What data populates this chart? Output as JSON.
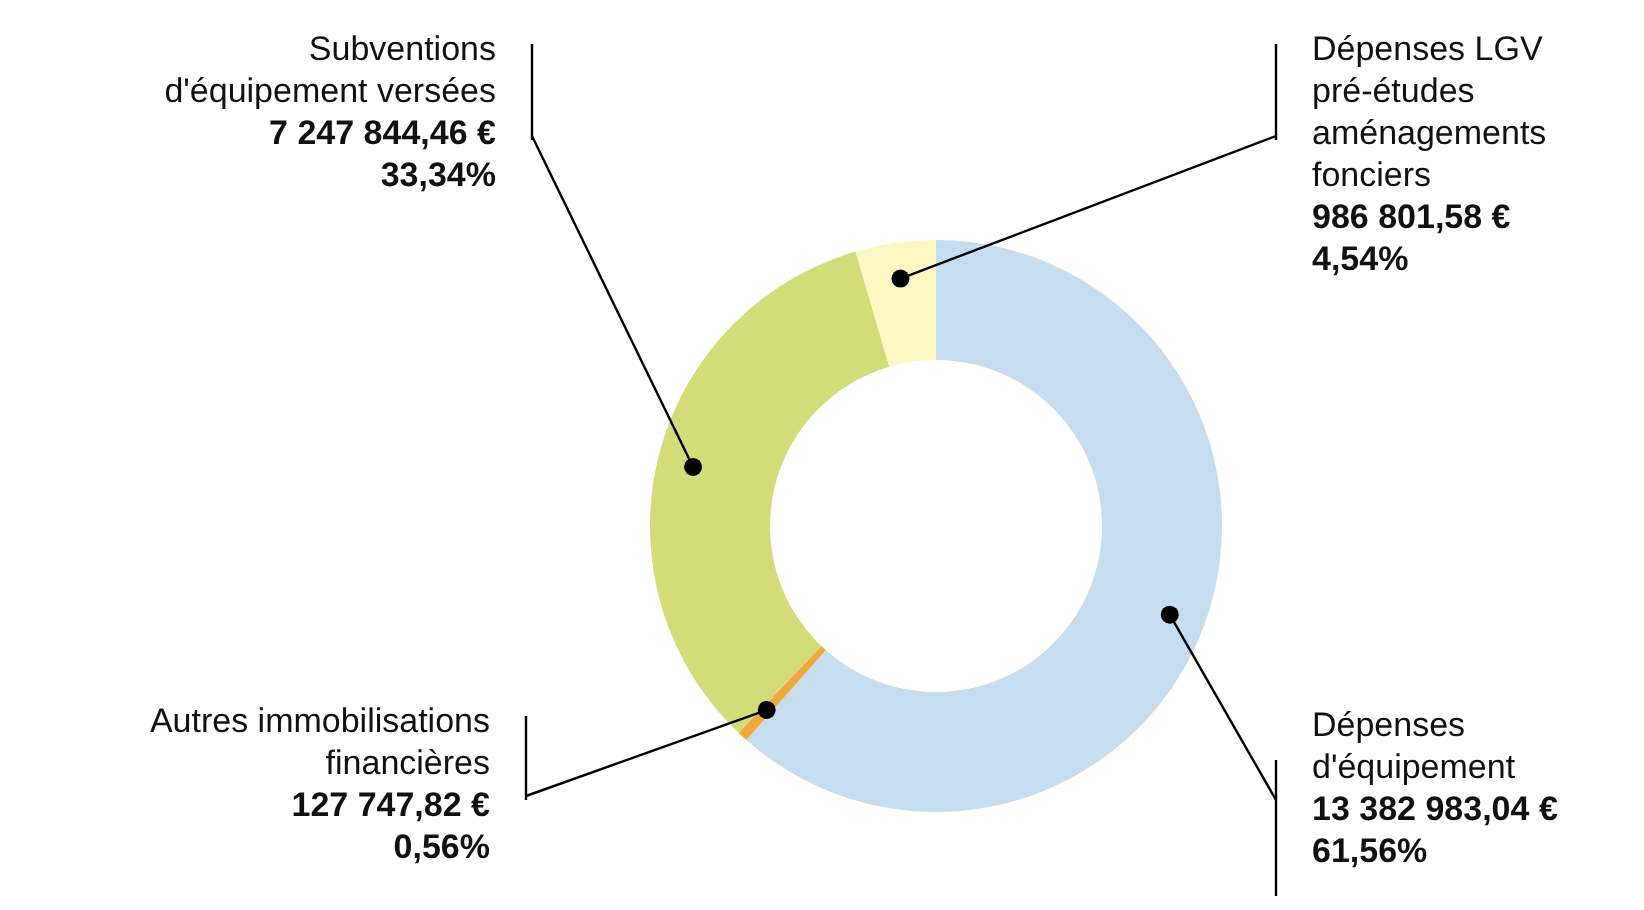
{
  "chart_data": {
    "type": "donut",
    "categories": [
      "Dépenses d'équipement",
      "Autres immobilisations financières",
      "Subventions d'équipement versées",
      "Dépenses LGV pré-études aménagements fonciers"
    ],
    "values": [
      13382983.04,
      127747.82,
      7247844.46,
      986801.58
    ],
    "colors": [
      "#c6dcef",
      "#f0a83c",
      "#d3dc78",
      "#fdf7c3"
    ],
    "value_labels": [
      "13 382 983,04 €\n61,56%",
      "127 747,82 €\n0,56%",
      "7 247 844,46 €\n33,34%",
      "986 801,58 €\n4,54%"
    ]
  }
}
